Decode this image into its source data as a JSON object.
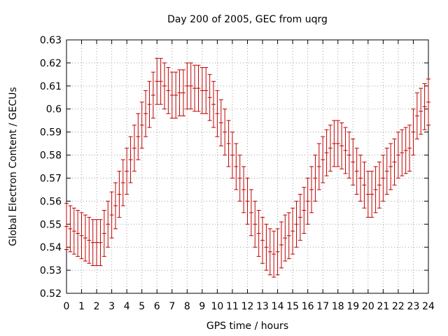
{
  "chart_data": {
    "type": "scatter",
    "title": "Day 200 of 2005, GEC from uqrg",
    "xlabel": "GPS time / hours",
    "ylabel": "Global Electron Content / GECUs",
    "xlim": [
      0,
      24
    ],
    "ylim": [
      0.52,
      0.63
    ],
    "xticks": [
      "0",
      "1",
      "2",
      "3",
      "4",
      "5",
      "6",
      "7",
      "8",
      "9",
      "10",
      "11",
      "12",
      "13",
      "14",
      "15",
      "16",
      "17",
      "18",
      "19",
      "20",
      "21",
      "22",
      "23",
      "24"
    ],
    "yticks": [
      "0.52",
      "0.53",
      "0.54",
      "0.55",
      "0.56",
      "0.57",
      "0.58",
      "0.59",
      "0.6",
      "0.61",
      "0.62",
      "0.63"
    ],
    "grid": true,
    "legend": "none",
    "series": [
      {
        "color": "#c00000",
        "x": [
          0.0,
          0.25,
          0.5,
          0.75,
          1.0,
          1.25,
          1.5,
          1.75,
          2.0,
          2.25,
          2.5,
          2.75,
          3.0,
          3.25,
          3.5,
          3.75,
          4.0,
          4.25,
          4.5,
          4.75,
          5.0,
          5.25,
          5.5,
          5.75,
          6.0,
          6.25,
          6.5,
          6.75,
          7.0,
          7.25,
          7.5,
          7.75,
          8.0,
          8.25,
          8.5,
          8.75,
          9.0,
          9.25,
          9.5,
          9.75,
          10.0,
          10.25,
          10.5,
          10.75,
          11.0,
          11.25,
          11.5,
          11.75,
          12.0,
          12.25,
          12.5,
          12.75,
          13.0,
          13.25,
          13.5,
          13.75,
          14.0,
          14.25,
          14.5,
          14.75,
          15.0,
          15.25,
          15.5,
          15.75,
          16.0,
          16.25,
          16.5,
          16.75,
          17.0,
          17.25,
          17.5,
          17.75,
          18.0,
          18.25,
          18.5,
          18.75,
          19.0,
          19.25,
          19.5,
          19.75,
          20.0,
          20.25,
          20.5,
          20.75,
          21.0,
          21.25,
          21.5,
          21.75,
          22.0,
          22.25,
          22.5,
          22.75,
          23.0,
          23.25,
          23.5,
          23.75,
          24.0
        ],
        "y": [
          0.549,
          0.548,
          0.547,
          0.546,
          0.545,
          0.544,
          0.543,
          0.542,
          0.542,
          0.542,
          0.546,
          0.55,
          0.554,
          0.558,
          0.563,
          0.568,
          0.573,
          0.578,
          0.583,
          0.588,
          0.593,
          0.598,
          0.602,
          0.606,
          0.612,
          0.612,
          0.61,
          0.608,
          0.606,
          0.606,
          0.607,
          0.607,
          0.61,
          0.61,
          0.609,
          0.609,
          0.608,
          0.608,
          0.605,
          0.602,
          0.598,
          0.594,
          0.59,
          0.585,
          0.58,
          0.575,
          0.57,
          0.565,
          0.56,
          0.555,
          0.55,
          0.546,
          0.543,
          0.54,
          0.538,
          0.537,
          0.538,
          0.541,
          0.544,
          0.545,
          0.547,
          0.55,
          0.553,
          0.556,
          0.56,
          0.565,
          0.57,
          0.575,
          0.578,
          0.581,
          0.583,
          0.585,
          0.585,
          0.584,
          0.582,
          0.58,
          0.577,
          0.573,
          0.57,
          0.567,
          0.563,
          0.563,
          0.565,
          0.567,
          0.57,
          0.573,
          0.575,
          0.577,
          0.58,
          0.581,
          0.582,
          0.583,
          0.59,
          0.597,
          0.599,
          0.601,
          0.603
        ],
        "err": [
          0.01,
          0.01,
          0.01,
          0.01,
          0.01,
          0.01,
          0.01,
          0.01,
          0.01,
          0.01,
          0.01,
          0.01,
          0.01,
          0.01,
          0.01,
          0.01,
          0.01,
          0.01,
          0.01,
          0.01,
          0.01,
          0.01,
          0.01,
          0.01,
          0.01,
          0.01,
          0.01,
          0.01,
          0.01,
          0.01,
          0.01,
          0.01,
          0.01,
          0.01,
          0.01,
          0.01,
          0.01,
          0.01,
          0.01,
          0.01,
          0.01,
          0.01,
          0.01,
          0.01,
          0.01,
          0.01,
          0.01,
          0.01,
          0.01,
          0.01,
          0.01,
          0.01,
          0.01,
          0.01,
          0.01,
          0.01,
          0.01,
          0.01,
          0.01,
          0.01,
          0.01,
          0.01,
          0.01,
          0.01,
          0.01,
          0.01,
          0.01,
          0.01,
          0.01,
          0.01,
          0.01,
          0.01,
          0.01,
          0.01,
          0.01,
          0.01,
          0.01,
          0.01,
          0.01,
          0.01,
          0.01,
          0.01,
          0.01,
          0.01,
          0.01,
          0.01,
          0.01,
          0.01,
          0.01,
          0.01,
          0.01,
          0.01,
          0.01,
          0.01,
          0.01,
          0.01,
          0.01
        ]
      }
    ]
  }
}
